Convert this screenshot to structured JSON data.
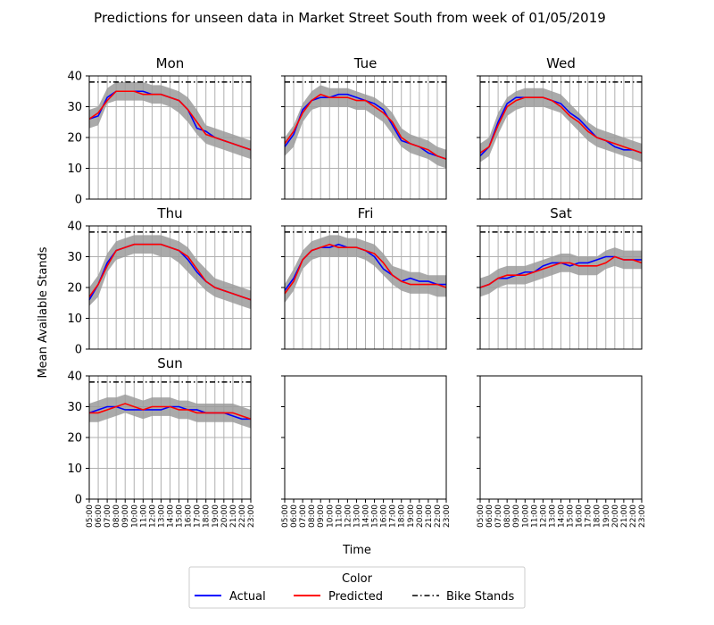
{
  "title": "Predictions for unseen data in Market Street South from week of 01/05/2019",
  "ylabel": "Mean Available Stands",
  "xlabel": "Time",
  "legend": {
    "title": "Color",
    "items": [
      "Actual",
      "Predicted",
      "Bike Stands"
    ]
  },
  "colors": {
    "actual": "#0000ff",
    "predicted": "#ff0000",
    "band": "#9b9b9b",
    "grid": "#b0b0b0",
    "stands": "#000000"
  },
  "chart_data": {
    "type": "line",
    "layout": "3x3 small multiples, last two panels empty",
    "x": [
      "05:00",
      "06:00",
      "07:00",
      "08:00",
      "09:00",
      "10:00",
      "11:00",
      "12:00",
      "13:00",
      "14:00",
      "15:00",
      "16:00",
      "17:00",
      "18:00",
      "19:00",
      "20:00",
      "21:00",
      "22:00",
      "23:00"
    ],
    "ylim": [
      0,
      40
    ],
    "yticks": [
      0,
      10,
      20,
      30,
      40
    ],
    "bike_stands": 38,
    "grid": true,
    "panels": [
      {
        "title": "Mon",
        "actual": [
          26,
          27,
          33,
          35,
          35,
          35,
          35,
          34,
          34,
          33,
          32,
          29,
          23,
          22,
          20,
          19,
          18,
          17,
          16
        ],
        "predicted": [
          26,
          28,
          32,
          35,
          35,
          35,
          34,
          34,
          34,
          33,
          32,
          29,
          25,
          21,
          20,
          19,
          18,
          17,
          16
        ],
        "band_low": [
          23,
          24,
          31,
          32,
          32,
          32,
          32,
          31,
          31,
          30,
          28,
          25,
          21,
          18,
          17,
          16,
          15,
          14,
          13
        ],
        "band_high": [
          29,
          30,
          36,
          38,
          38,
          38,
          38,
          37,
          37,
          36,
          35,
          33,
          29,
          24,
          23,
          22,
          21,
          20,
          19
        ]
      },
      {
        "title": "Tue",
        "actual": [
          17,
          21,
          29,
          32,
          33,
          33,
          34,
          34,
          33,
          32,
          31,
          29,
          24,
          19,
          18,
          17,
          15,
          14,
          13
        ],
        "predicted": [
          18,
          22,
          28,
          32,
          34,
          33,
          33,
          33,
          32,
          32,
          30,
          28,
          25,
          20,
          18,
          17,
          16,
          14,
          13
        ],
        "band_low": [
          14,
          17,
          25,
          29,
          30,
          30,
          30,
          30,
          29,
          29,
          27,
          25,
          21,
          17,
          15,
          14,
          13,
          11,
          10
        ],
        "band_high": [
          20,
          24,
          31,
          35,
          37,
          36,
          36,
          36,
          35,
          34,
          33,
          31,
          28,
          23,
          21,
          20,
          19,
          17,
          16
        ]
      },
      {
        "title": "Wed",
        "actual": [
          14,
          17,
          25,
          31,
          33,
          33,
          33,
          33,
          32,
          31,
          28,
          26,
          23,
          20,
          19,
          17,
          16,
          16,
          15
        ],
        "predicted": [
          15,
          17,
          24,
          30,
          32,
          33,
          33,
          33,
          32,
          30,
          27,
          25,
          22,
          20,
          19,
          18,
          17,
          16,
          15
        ],
        "band_low": [
          12,
          14,
          21,
          27,
          29,
          30,
          30,
          30,
          29,
          28,
          25,
          22,
          19,
          17,
          16,
          15,
          14,
          13,
          12
        ],
        "band_high": [
          18,
          20,
          28,
          33,
          35,
          36,
          36,
          36,
          35,
          34,
          31,
          28,
          25,
          23,
          22,
          21,
          20,
          19,
          18
        ]
      },
      {
        "title": "Thu",
        "actual": [
          16,
          21,
          28,
          32,
          33,
          34,
          34,
          34,
          34,
          33,
          32,
          29,
          25,
          22,
          20,
          19,
          18,
          17,
          16
        ],
        "predicted": [
          17,
          21,
          27,
          32,
          33,
          34,
          34,
          34,
          34,
          33,
          32,
          30,
          26,
          22,
          20,
          19,
          18,
          17,
          16
        ],
        "band_low": [
          14,
          17,
          25,
          29,
          30,
          31,
          31,
          31,
          30,
          30,
          28,
          25,
          22,
          19,
          17,
          16,
          15,
          14,
          13
        ],
        "band_high": [
          20,
          24,
          31,
          35,
          36,
          37,
          37,
          37,
          37,
          36,
          35,
          33,
          29,
          26,
          23,
          22,
          21,
          20,
          19
        ]
      },
      {
        "title": "Fri",
        "actual": [
          19,
          23,
          29,
          32,
          33,
          33,
          34,
          33,
          33,
          32,
          30,
          26,
          24,
          22,
          23,
          22,
          22,
          21,
          21
        ],
        "predicted": [
          18,
          22,
          29,
          32,
          33,
          34,
          33,
          33,
          33,
          32,
          31,
          28,
          24,
          22,
          21,
          21,
          21,
          21,
          20
        ],
        "band_low": [
          15,
          19,
          26,
          29,
          30,
          30,
          30,
          30,
          30,
          29,
          27,
          24,
          21,
          19,
          18,
          18,
          18,
          17,
          17
        ],
        "band_high": [
          21,
          26,
          32,
          35,
          36,
          37,
          37,
          36,
          36,
          35,
          34,
          31,
          27,
          26,
          25,
          25,
          24,
          24,
          24
        ]
      },
      {
        "title": "Sat",
        "actual": [
          20,
          21,
          23,
          23,
          24,
          25,
          25,
          27,
          28,
          28,
          27,
          28,
          28,
          29,
          30,
          30,
          29,
          29,
          29
        ],
        "predicted": [
          20,
          21,
          23,
          24,
          24,
          24,
          25,
          26,
          27,
          28,
          28,
          27,
          27,
          27,
          28,
          30,
          29,
          29,
          28
        ],
        "band_low": [
          17,
          18,
          20,
          21,
          21,
          21,
          22,
          23,
          24,
          25,
          25,
          24,
          24,
          24,
          26,
          27,
          26,
          26,
          26
        ],
        "band_high": [
          23,
          24,
          26,
          27,
          27,
          27,
          28,
          29,
          30,
          31,
          31,
          30,
          30,
          30,
          32,
          33,
          32,
          32,
          32
        ]
      },
      {
        "title": "Sun",
        "actual": [
          28,
          29,
          30,
          30,
          29,
          29,
          29,
          29,
          29,
          30,
          30,
          29,
          29,
          28,
          28,
          28,
          27,
          26,
          26
        ],
        "predicted": [
          28,
          28,
          29,
          30,
          31,
          30,
          29,
          30,
          30,
          30,
          29,
          29,
          28,
          28,
          28,
          28,
          28,
          27,
          26
        ],
        "band_low": [
          25,
          25,
          26,
          27,
          28,
          27,
          26,
          27,
          27,
          27,
          26,
          26,
          25,
          25,
          25,
          25,
          25,
          24,
          23
        ],
        "band_high": [
          31,
          32,
          33,
          33,
          34,
          33,
          32,
          33,
          33,
          33,
          32,
          32,
          31,
          31,
          31,
          31,
          31,
          30,
          29
        ]
      }
    ]
  }
}
